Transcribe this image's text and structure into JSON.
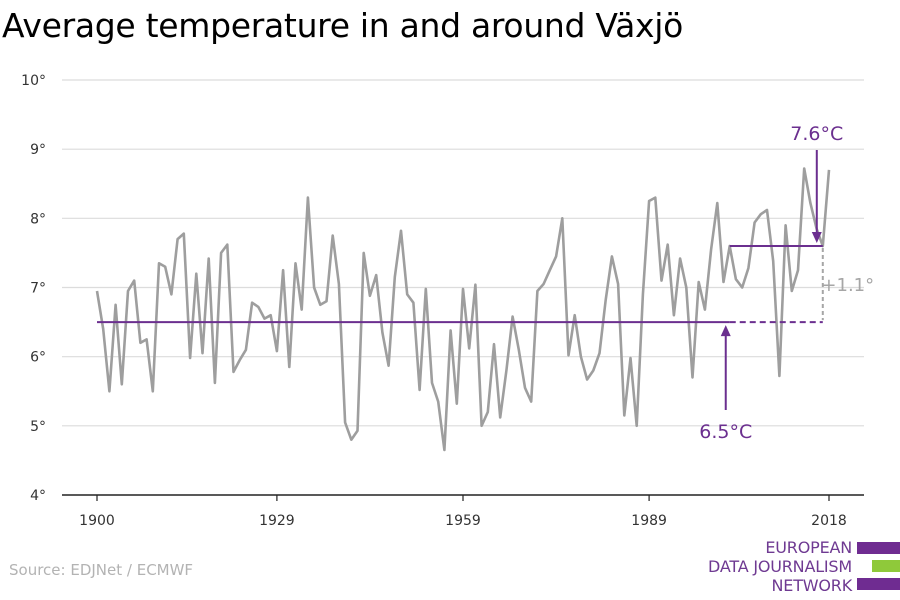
{
  "title": "Average temperature in and around Växjö",
  "source": "Source: EDJNet / ECMWF",
  "logo": {
    "lines": [
      "EUROPEAN",
      "DATA JOURNALISM",
      "NETWORK"
    ],
    "colors": [
      "#6f2c91",
      "#8fc93a",
      "#6f2c91"
    ]
  },
  "colors": {
    "series": "#9e9e9e",
    "average": "#6b2f8f",
    "grid": "#dcdcdc",
    "diff": "#a6a6a6"
  },
  "chart_data": {
    "type": "line",
    "title": "Average temperature in and around Växjö",
    "xlabel": "",
    "ylabel": "",
    "xlim": [
      1900,
      2018
    ],
    "ylim": [
      4,
      10
    ],
    "x_ticks": [
      1900,
      1929,
      1959,
      1989,
      2018
    ],
    "y_ticks": [
      4,
      5,
      6,
      7,
      8,
      9,
      10
    ],
    "y_tick_labels": [
      "4°",
      "5°",
      "6°",
      "7°",
      "8°",
      "9°",
      "10°"
    ],
    "grid": true,
    "series": [
      {
        "x": [
          1900,
          1901,
          1902,
          1903,
          1904,
          1905,
          1906,
          1907,
          1908,
          1909,
          1910,
          1911,
          1912,
          1913,
          1914,
          1915,
          1916,
          1917,
          1918,
          1919,
          1920,
          1921,
          1922,
          1923,
          1924,
          1925,
          1926,
          1927,
          1928,
          1929,
          1930,
          1931,
          1932,
          1933,
          1934,
          1935,
          1936,
          1937,
          1938,
          1939,
          1940,
          1941,
          1942,
          1943,
          1944,
          1945,
          1946,
          1947,
          1948,
          1949,
          1950,
          1951,
          1952,
          1953,
          1954,
          1955,
          1956,
          1957,
          1958,
          1959,
          1960,
          1961,
          1962,
          1963,
          1964,
          1965,
          1966,
          1967,
          1968,
          1969,
          1970,
          1971,
          1972,
          1973,
          1974,
          1975,
          1976,
          1977,
          1978,
          1979,
          1980,
          1981,
          1982,
          1983,
          1984,
          1985,
          1986,
          1987,
          1988,
          1989,
          1990,
          1991,
          1992,
          1993,
          1994,
          1995,
          1996,
          1997,
          1998,
          1999,
          2000,
          2001,
          2002,
          2003,
          2004,
          2005,
          2006,
          2007,
          2008,
          2009,
          2010,
          2011,
          2012,
          2013,
          2014,
          2015,
          2016,
          2017,
          2018
        ],
        "values": [
          6.95,
          6.4,
          5.5,
          6.75,
          5.6,
          6.95,
          7.1,
          6.2,
          6.25,
          5.5,
          7.35,
          7.3,
          6.9,
          7.7,
          7.78,
          5.98,
          7.2,
          6.05,
          7.42,
          5.62,
          7.5,
          7.62,
          5.78,
          5.95,
          6.1,
          6.78,
          6.72,
          6.55,
          6.6,
          6.08,
          7.25,
          5.85,
          7.35,
          6.68,
          8.3,
          7.0,
          6.75,
          6.8,
          7.75,
          7.05,
          5.05,
          4.8,
          4.93,
          7.5,
          6.88,
          7.18,
          6.35,
          5.87,
          7.15,
          7.82,
          6.9,
          6.78,
          5.52,
          6.98,
          5.62,
          5.35,
          4.65,
          6.38,
          5.32,
          6.98,
          6.12,
          7.04,
          5.0,
          5.2,
          6.18,
          5.12,
          5.8,
          6.58,
          6.1,
          5.55,
          5.35,
          6.95,
          7.05,
          7.25,
          7.45,
          8.0,
          6.02,
          6.6,
          6.0,
          5.67,
          5.8,
          6.05,
          6.82,
          7.45,
          7.05,
          5.15,
          5.98,
          5.0,
          6.9,
          8.25,
          8.3,
          7.1,
          7.62,
          6.6,
          7.42,
          7.0,
          5.7,
          7.08,
          6.68,
          7.55,
          8.22,
          7.08,
          7.6,
          7.12,
          7.0,
          7.28,
          7.94,
          8.06,
          8.12,
          7.38,
          5.72,
          7.9,
          6.95,
          7.25,
          8.72,
          8.22,
          7.85,
          7.6,
          8.7
        ]
      }
    ],
    "annotations": {
      "early_average": {
        "value": 6.5,
        "label": "6.5°C",
        "x_start": 1900,
        "x_end": 2002
      },
      "recent_average": {
        "value": 7.6,
        "label": "7.6°C",
        "x_start": 2002,
        "x_end": 2017
      },
      "difference": {
        "label": "+1.1°"
      }
    }
  }
}
